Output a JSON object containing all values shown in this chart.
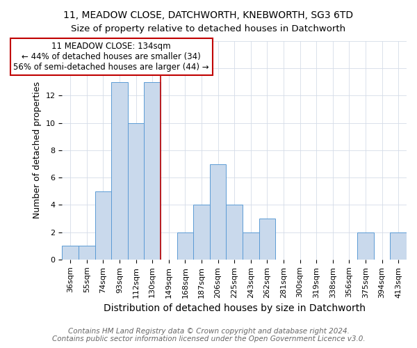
{
  "title": "11, MEADOW CLOSE, DATCHWORTH, KNEBWORTH, SG3 6TD",
  "subtitle": "Size of property relative to detached houses in Datchworth",
  "xlabel": "Distribution of detached houses by size in Datchworth",
  "ylabel": "Number of detached properties",
  "categories": [
    "36sqm",
    "55sqm",
    "74sqm",
    "93sqm",
    "112sqm",
    "130sqm",
    "149sqm",
    "168sqm",
    "187sqm",
    "206sqm",
    "225sqm",
    "243sqm",
    "262sqm",
    "281sqm",
    "300sqm",
    "319sqm",
    "338sqm",
    "356sqm",
    "375sqm",
    "394sqm",
    "413sqm"
  ],
  "values": [
    1,
    1,
    5,
    13,
    10,
    13,
    0,
    2,
    4,
    7,
    4,
    2,
    3,
    0,
    0,
    0,
    0,
    0,
    2,
    0,
    2
  ],
  "bar_color": "#c9d9ec",
  "bar_edge_color": "#5b9bd5",
  "vline_pos": 5.5,
  "vline_color": "#c00000",
  "annotation_text": "11 MEADOW CLOSE: 134sqm\n← 44% of detached houses are smaller (34)\n56% of semi-detached houses are larger (44) →",
  "annotation_box_color": "white",
  "annotation_box_edge_color": "#c00000",
  "ylim": [
    0,
    16
  ],
  "yticks": [
    0,
    2,
    4,
    6,
    8,
    10,
    12,
    14,
    16
  ],
  "footer": "Contains HM Land Registry data © Crown copyright and database right 2024.\nContains public sector information licensed under the Open Government Licence v3.0.",
  "title_fontsize": 10,
  "xlabel_fontsize": 10,
  "ylabel_fontsize": 9,
  "footer_fontsize": 7.5,
  "annotation_fontsize": 8.5,
  "tick_fontsize": 8
}
